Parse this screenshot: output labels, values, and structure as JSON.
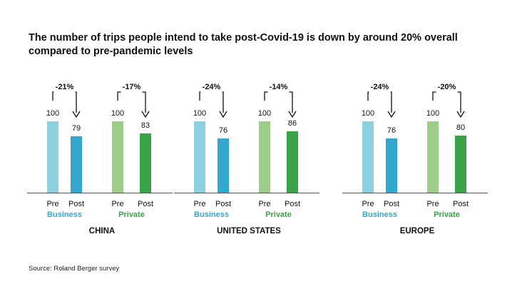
{
  "title": "The number of trips people intend to take post-Covid-19 is down by around 20% overall compared to pre-pandemic levels",
  "source": "Source: Roland Berger survey",
  "colors": {
    "business_pre": "#8dd0e0",
    "business_post": "#33a7cd",
    "private_pre": "#9dcd89",
    "private_post": "#3aa347",
    "business_label": "#33a7cd",
    "private_label": "#3aa347",
    "text": "#111111",
    "axis": "#555555"
  },
  "chart_data": [
    {
      "type": "bar",
      "region": "CHINA",
      "categories": [
        "Pre",
        "Post",
        "Pre",
        "Post"
      ],
      "groups": [
        {
          "name": "Business",
          "pre": 100,
          "post": 79,
          "change": "-21%"
        },
        {
          "name": "Private",
          "pre": 100,
          "post": 83,
          "change": "-17%"
        }
      ],
      "ylim": [
        0,
        100
      ]
    },
    {
      "type": "bar",
      "region": "UNITED STATES",
      "categories": [
        "Pre",
        "Post",
        "Pre",
        "Post"
      ],
      "groups": [
        {
          "name": "Business",
          "pre": 100,
          "post": 76,
          "change": "-24%"
        },
        {
          "name": "Private",
          "pre": 100,
          "post": 86,
          "change": "-14%"
        }
      ],
      "ylim": [
        0,
        100
      ]
    },
    {
      "type": "bar",
      "region": "EUROPE",
      "categories": [
        "Pre",
        "Post",
        "Pre",
        "Post"
      ],
      "groups": [
        {
          "name": "Business",
          "pre": 100,
          "post": 76,
          "change": "-24%"
        },
        {
          "name": "Private",
          "pre": 100,
          "post": 80,
          "change": "-20%"
        }
      ],
      "ylim": [
        0,
        100
      ]
    }
  ]
}
